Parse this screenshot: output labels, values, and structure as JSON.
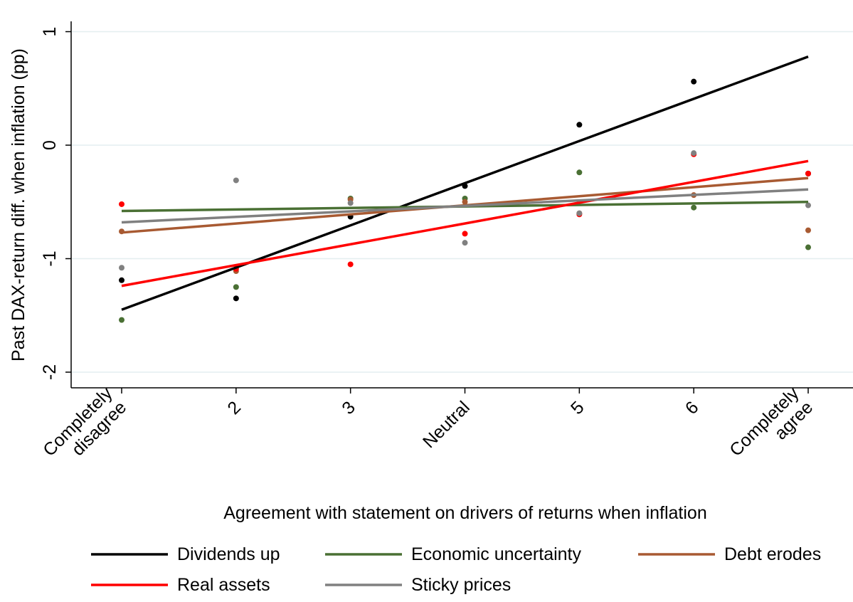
{
  "chart_data": {
    "type": "scatter",
    "xlabel": "Agreement with statement on drivers of returns when inflation",
    "ylabel": "Past DAX-return diff. when inflation (pp)",
    "x": [
      1,
      2,
      3,
      4,
      5,
      6,
      7
    ],
    "categories": [
      [
        "Completely",
        "disagree"
      ],
      [
        "2"
      ],
      [
        "3"
      ],
      [
        "Neutral"
      ],
      [
        "5"
      ],
      [
        "6"
      ],
      [
        "Completely",
        "agree"
      ]
    ],
    "ylim": [
      -2.15,
      1.12
    ],
    "yticks": [
      -2,
      -1,
      0,
      1
    ],
    "ytick_labels": [
      "-2",
      "-1",
      "0",
      "1"
    ],
    "grid": "horizontal",
    "legend_position": "bottom",
    "series": [
      {
        "name": "Dividends up",
        "color": "#000000",
        "points": [
          -1.19,
          -1.35,
          -0.63,
          -0.36,
          0.18,
          0.56,
          -0.25
        ],
        "fit": [
          -1.45,
          0.78
        ]
      },
      {
        "name": "Economic uncertainty",
        "color": "#4a7034",
        "points": [
          -1.54,
          -1.25,
          -0.47,
          -0.47,
          -0.24,
          -0.55,
          -0.9
        ],
        "fit": [
          -0.58,
          -0.5
        ]
      },
      {
        "name": "Debt erodes",
        "color": "#a85a32",
        "points": [
          -0.76,
          -1.11,
          -0.48,
          -0.5,
          -0.6,
          -0.44,
          -0.75
        ],
        "fit": [
          -0.77,
          -0.29
        ]
      },
      {
        "name": "Real assets",
        "color": "#ff0000",
        "points": [
          -0.52,
          -1.09,
          -1.05,
          -0.78,
          -0.61,
          -0.08,
          -0.25
        ],
        "fit": [
          -1.24,
          -0.14
        ]
      },
      {
        "name": "Sticky prices",
        "color": "#808080",
        "points": [
          -1.08,
          -0.31,
          -0.51,
          -0.86,
          -0.6,
          -0.07,
          -0.53
        ],
        "fit": [
          -0.68,
          -0.39
        ]
      }
    ]
  }
}
